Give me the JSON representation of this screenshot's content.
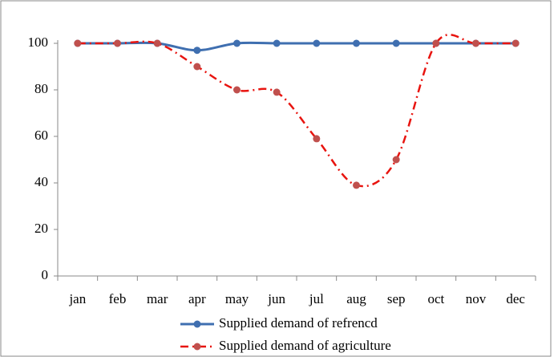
{
  "chart_data": {
    "type": "line",
    "categories": [
      "jan",
      "feb",
      "mar",
      "apr",
      "may",
      "jun",
      "jul",
      "aug",
      "sep",
      "oct",
      "nov",
      "dec"
    ],
    "series": [
      {
        "name": "Supplied demand of refrencd",
        "color": "#3f6fb0",
        "line_style": "solid",
        "values": [
          100,
          100,
          100,
          97,
          100,
          100,
          100,
          100,
          100,
          100,
          100,
          100
        ]
      },
      {
        "name": "Supplied demand of agriculture",
        "color": "#e8140f",
        "marker_color": "#c0504d",
        "line_style": "dashdot",
        "values": [
          100,
          100,
          100,
          90,
          80,
          79,
          59,
          39,
          50,
          100,
          100,
          100
        ]
      }
    ],
    "ylim": [
      0,
      100
    ],
    "yticks": [
      0,
      20,
      40,
      60,
      80,
      100
    ],
    "grid": false,
    "smooth": true,
    "legend": "bottom"
  }
}
